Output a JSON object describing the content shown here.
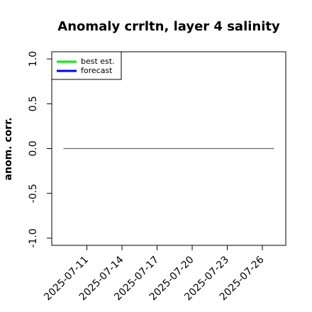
{
  "chart_data": {
    "type": "line",
    "title": "Anomaly crrltn, layer 4 salinity",
    "y_label": "anom. corr.",
    "series": [
      {
        "name": "best est.",
        "color": "#00ee00"
      },
      {
        "name": "forecast",
        "color": "#0000ff"
      }
    ],
    "zero_line": {
      "y": 0,
      "from": "2025-07-09",
      "to": "2025-07-27",
      "color": "#666666"
    },
    "xlim": [
      "2025-07-08",
      "2025-07-28"
    ],
    "xticks": [
      "2025-07-11",
      "2025-07-14",
      "2025-07-17",
      "2025-07-20",
      "2025-07-23",
      "2025-07-26"
    ],
    "highlight_tick": "2025-07-17",
    "highlight_color": "#228b22",
    "ylim": [
      -1.08,
      1.08
    ],
    "yticks": [
      {
        "value": -1,
        "label": "-1.0"
      },
      {
        "value": -0.5,
        "label": "-0.5"
      },
      {
        "value": 0,
        "label": "0.0"
      },
      {
        "value": 0.5,
        "label": "0.5"
      },
      {
        "value": 1,
        "label": "1.0"
      }
    ],
    "legend": "top-left"
  }
}
